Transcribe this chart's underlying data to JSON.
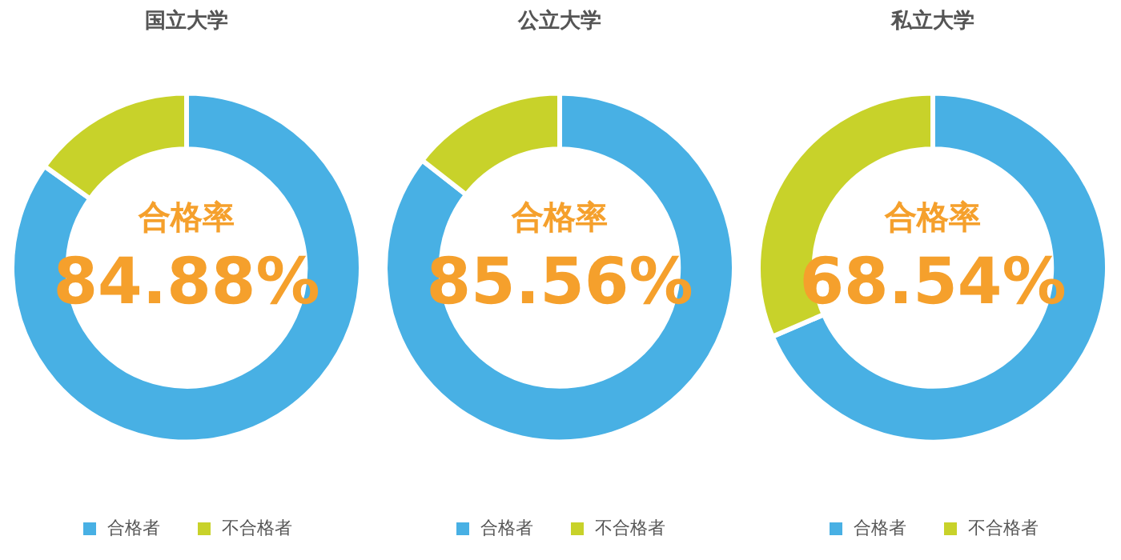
{
  "chart_data": [
    {
      "type": "donut",
      "title": "国立大学",
      "categories": [
        "合格者",
        "不合格者"
      ],
      "values": [
        84.88,
        15.12
      ],
      "colors": [
        "#48b0e4",
        "#c8d22a"
      ],
      "legend": "bottom",
      "annotations": [
        "合格率",
        "84.88%"
      ]
    },
    {
      "type": "donut",
      "title": "公立大学",
      "categories": [
        "合格者",
        "不合格者"
      ],
      "values": [
        85.56,
        14.44
      ],
      "colors": [
        "#48b0e4",
        "#c8d22a"
      ],
      "legend": "bottom",
      "annotations": [
        "合格率",
        "85.56%"
      ]
    },
    {
      "type": "donut",
      "title": "私立大学",
      "categories": [
        "合格者",
        "不合格者"
      ],
      "values": [
        68.54,
        31.46
      ],
      "colors": [
        "#48b0e4",
        "#c8d22a"
      ],
      "legend": "bottom",
      "annotations": [
        "合格率",
        "68.54%"
      ]
    }
  ]
}
